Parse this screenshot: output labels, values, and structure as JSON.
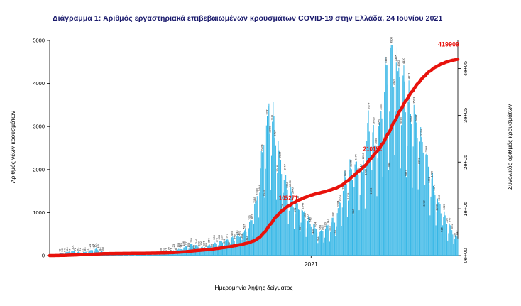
{
  "title": "Διάγραμμα 1: Αριθμός εργαστηριακά επιβεβαιωμένων κρουσμάτων COVID-19 στην Ελλάδα, 24 Ιουνίου 2021",
  "colors": {
    "title": "#1a1a6c",
    "bar": "#35b6e6",
    "line": "#e8120c",
    "axis": "#000000",
    "bar_label": "#1a1a1a"
  },
  "chart_data": {
    "type": "bar+line",
    "title": "Διάγραμμα 1: Αριθμός εργαστηριακά επιβεβαιωμένων κρουσμάτων COVID-19 στην Ελλάδα, 24 Ιουνίου 2021",
    "x": {
      "title": "Ημερομηνία λήψης δείγματος",
      "start_date": "2020-02-26",
      "end_date": "2021-06-24",
      "tick_labels": [
        {
          "label": "2021",
          "date": "2021-01-01"
        }
      ]
    },
    "y_left": {
      "title": "Αριθμός νέων κρουσμάτων",
      "ticks": [
        0,
        1000,
        2000,
        3000,
        4000,
        5000
      ],
      "max": 5000
    },
    "y_right": {
      "title": "Συνολικός αριθμός κρουσμάτων",
      "ticks": [
        {
          "label": "0e+00",
          "value": 0
        },
        {
          "label": "1e+05",
          "value": 100000
        },
        {
          "label": "2e+05",
          "value": 200000
        },
        {
          "label": "3e+05",
          "value": 300000
        },
        {
          "label": "4e+05",
          "value": 400000
        }
      ],
      "max": 460000
    },
    "bar_series_name": "Αριθμός νέων κρουσμάτων (ημερήσια)",
    "line_series_name": "Συνολικός αριθμός κρουσμάτων (αθροιστικά)",
    "cumulative_total": 419909,
    "line_annotations": [
      {
        "label": "105271",
        "value": 105271
      },
      {
        "label": "210152",
        "value": 210152
      },
      {
        "label": "419909",
        "value": 419909
      }
    ],
    "daily_cases_keypoints": [
      [
        "2020-02-26",
        3
      ],
      [
        "2020-03-10",
        45
      ],
      [
        "2020-03-22",
        95
      ],
      [
        "2020-04-05",
        65
      ],
      [
        "2020-04-21",
        140
      ],
      [
        "2020-05-06",
        28
      ],
      [
        "2020-06-01",
        16
      ],
      [
        "2020-07-01",
        32
      ],
      [
        "2020-07-26",
        115
      ],
      [
        "2020-08-12",
        240
      ],
      [
        "2020-08-26",
        175
      ],
      [
        "2020-09-10",
        280
      ],
      [
        "2020-09-26",
        350
      ],
      [
        "2020-10-10",
        440
      ],
      [
        "2020-10-20",
        650
      ],
      [
        "2020-10-28",
        1150
      ],
      [
        "2020-11-03",
        2100
      ],
      [
        "2020-11-08",
        2700
      ],
      [
        "2020-11-12",
        3100
      ],
      [
        "2020-11-18",
        2850
      ],
      [
        "2020-11-25",
        2100
      ],
      [
        "2020-12-03",
        1550
      ],
      [
        "2020-12-12",
        1200
      ],
      [
        "2020-12-22",
        950
      ],
      [
        "2021-01-03",
        640
      ],
      [
        "2021-01-12",
        510
      ],
      [
        "2021-01-22",
        640
      ],
      [
        "2021-02-01",
        880
      ],
      [
        "2021-02-10",
        1650
      ],
      [
        "2021-02-17",
        1850
      ],
      [
        "2021-02-24",
        1950
      ],
      [
        "2021-03-03",
        1800
      ],
      [
        "2021-03-10",
        2800
      ],
      [
        "2021-03-17",
        2450
      ],
      [
        "2021-03-24",
        2950
      ],
      [
        "2021-03-31",
        3950
      ],
      [
        "2021-04-06",
        4350
      ],
      [
        "2021-04-13",
        4150
      ],
      [
        "2021-04-20",
        3800
      ],
      [
        "2021-04-27",
        3250
      ],
      [
        "2021-05-04",
        3050
      ],
      [
        "2021-05-11",
        2550
      ],
      [
        "2021-05-18",
        2050
      ],
      [
        "2021-05-25",
        1580
      ],
      [
        "2021-06-01",
        1150
      ],
      [
        "2021-06-08",
        840
      ],
      [
        "2021-06-15",
        610
      ],
      [
        "2021-06-24",
        380
      ]
    ],
    "weekly_pattern": [
      0.52,
      0.78,
      1.08,
      1.16,
      1.12,
      1.07,
      0.97
    ],
    "noise_amp": 0.08
  }
}
